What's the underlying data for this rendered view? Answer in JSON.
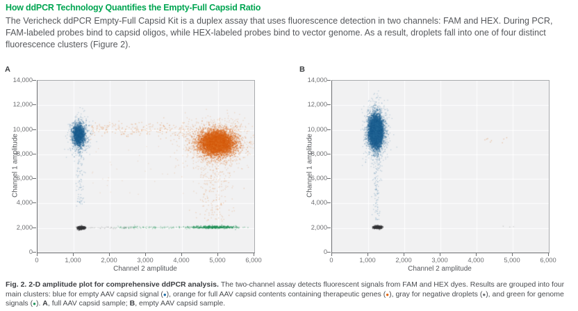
{
  "page": {
    "heading": "How ddPCR Technology Quantifies the Empty-Full Capsid Ratio",
    "body": "The Vericheck ddPCR Empty-Full Capsid Kit is a duplex assay that uses fluorescence detection in two channels: FAM and HEX. During PCR, FAM-labeled probes bind to capsid oligos, while HEX-labeled probes bind to vector genome. As a result, droplets fall into one of four distinct fluorescence clusters (Figure 2).",
    "accent_green": "#00a551"
  },
  "caption": {
    "segments": [
      {
        "text": "Fig. 2. 2-D amplitude plot for comprehensive ddPCR analysis. ",
        "bold": true
      },
      {
        "text": "The two-channel assay detects fluorescent signals from FAM and HEX dyes. Results are grouped into four main clusters: blue for empty AAV capsid signal ("
      },
      {
        "text": "●",
        "color": "#1b6aa5"
      },
      {
        "text": "), orange for full AAV capsid contents containing therapeutic genes ("
      },
      {
        "text": "●",
        "color": "#e2650f"
      },
      {
        "text": "), gray for negative droplets ("
      },
      {
        "text": "●",
        "color": "#6d6e71"
      },
      {
        "text": "), and green for genome signals ("
      },
      {
        "text": "●",
        "color": "#21945c"
      },
      {
        "text": "). "
      },
      {
        "text": "A",
        "bold": true
      },
      {
        "text": ", full AAV capsid sample; "
      },
      {
        "text": "B",
        "bold": true
      },
      {
        "text": ", empty AAV capsid sample."
      }
    ]
  },
  "chart_data": [
    {
      "type": "scatter",
      "panel_label": "A",
      "xlabel": "Channel 2 amplitude",
      "ylabel": "Channel 1 amplitude",
      "xlim": [
        0,
        6000
      ],
      "ylim": [
        0,
        14000
      ],
      "xticks": {
        "values": [
          0,
          1000,
          2000,
          3000,
          4000,
          5000,
          6000
        ],
        "labels": [
          "0",
          "1,000",
          "2,000",
          "3,000",
          "4,000",
          "5,000",
          "6,000"
        ]
      },
      "yticks": {
        "values": [
          0,
          2000,
          4000,
          6000,
          8000,
          10000,
          12000,
          14000
        ],
        "labels": [
          "0",
          "2,000",
          "4,000",
          "6,000",
          "8,000",
          "10,000",
          "12,000",
          "14,000"
        ]
      },
      "grid": true,
      "background": "#f1f1f2",
      "grid_color": "#ffffff",
      "clusters": [
        {
          "name": "empty-capsid-blue-core",
          "color": "#1a5c8e",
          "n": 1500,
          "alpha": 0.5,
          "size": 1.4,
          "x": {
            "d": "n",
            "m": 1130,
            "s": 85
          },
          "y": {
            "d": "n",
            "m": 9600,
            "s": 420
          }
        },
        {
          "name": "empty-capsid-blue-halo",
          "color": "#2f6f9e",
          "n": 450,
          "alpha": 0.3,
          "size": 1.2,
          "x": {
            "d": "n",
            "m": 1140,
            "s": 150
          },
          "y": {
            "d": "n",
            "m": 9600,
            "s": 800
          }
        },
        {
          "name": "empty-capsid-blue-tail",
          "color": "#2f6f9e",
          "n": 85,
          "alpha": 0.35,
          "size": 1.2,
          "x": {
            "d": "n",
            "m": 1170,
            "s": 55
          },
          "y": {
            "d": "u",
            "a": 3800,
            "b": 8600
          }
        },
        {
          "name": "full-capsid-orange-core",
          "color": "#d85c0e",
          "n": 5200,
          "alpha": 0.5,
          "size": 1.4,
          "x": {
            "d": "n",
            "m": 4950,
            "s": 230
          },
          "y": {
            "d": "n",
            "m": 8950,
            "s": 470
          }
        },
        {
          "name": "full-capsid-orange-halo",
          "color": "#e07a2e",
          "n": 1700,
          "alpha": 0.3,
          "size": 1.2,
          "x": {
            "d": "n",
            "m": 4950,
            "s": 420
          },
          "y": {
            "d": "n",
            "m": 8950,
            "s": 900
          }
        },
        {
          "name": "orange-horizontal-trail",
          "color": "#e07a2e",
          "n": 240,
          "alpha": 0.4,
          "size": 1.2,
          "x": {
            "d": "u",
            "a": 1450,
            "b": 4600
          },
          "y": {
            "d": "n",
            "m": 10050,
            "s": 320
          }
        },
        {
          "name": "orange-vertical-tail",
          "color": "#e07a2e",
          "n": 200,
          "alpha": 0.35,
          "size": 1.2,
          "x": {
            "d": "n",
            "m": 4900,
            "s": 250
          },
          "y": {
            "d": "u",
            "a": 2600,
            "b": 7600
          }
        },
        {
          "name": "orange-strays",
          "color": "#e08a4a",
          "n": 60,
          "alpha": 0.25,
          "size": 1.2,
          "x": {
            "d": "u",
            "a": 1500,
            "b": 5800
          },
          "y": {
            "d": "u",
            "a": 4500,
            "b": 8800
          }
        },
        {
          "name": "negative-gray",
          "color": "#343538",
          "n": 380,
          "alpha": 0.7,
          "size": 1.5,
          "x": {
            "d": "n",
            "m": 1195,
            "s": 50
          },
          "y": {
            "d": "n",
            "m": 2050,
            "s": 55
          }
        },
        {
          "name": "genome-green-dense",
          "color": "#1e8f55",
          "n": 430,
          "alpha": 0.55,
          "size": 1.3,
          "x": {
            "d": "n",
            "m": 4900,
            "s": 330
          },
          "y": {
            "d": "n",
            "m": 2100,
            "s": 55
          }
        },
        {
          "name": "genome-green-sparse",
          "color": "#2f9b63",
          "n": 150,
          "alpha": 0.4,
          "size": 1.2,
          "x": {
            "d": "u",
            "a": 2100,
            "b": 4400
          },
          "y": {
            "d": "n",
            "m": 2080,
            "s": 50
          }
        },
        {
          "name": "band-gray-sparse",
          "color": "#8d8f92",
          "n": 45,
          "alpha": 0.4,
          "size": 1.2,
          "x": {
            "d": "u",
            "a": 1350,
            "b": 2700
          },
          "y": {
            "d": "n",
            "m": 2050,
            "s": 45
          }
        }
      ]
    },
    {
      "type": "scatter",
      "panel_label": "B",
      "xlabel": "Channel 2 amplitude",
      "ylabel": "Channel 1 amplitude",
      "xlim": [
        0,
        6000
      ],
      "ylim": [
        0,
        14000
      ],
      "xticks": {
        "values": [
          0,
          1000,
          2000,
          3000,
          4000,
          5000,
          6000
        ],
        "labels": [
          "0",
          "1,000",
          "2,000",
          "3,000",
          "4,000",
          "5,000",
          "6,000"
        ]
      },
      "yticks": {
        "values": [
          0,
          2000,
          4000,
          6000,
          8000,
          10000,
          12000,
          14000
        ],
        "labels": [
          "0",
          "2,000",
          "4,000",
          "6,000",
          "8,000",
          "10,000",
          "12,000",
          "14,000"
        ]
      },
      "grid": true,
      "background": "#f1f1f2",
      "grid_color": "#ffffff",
      "clusters": [
        {
          "name": "empty-capsid-blue-core",
          "color": "#1a5c8e",
          "n": 5200,
          "alpha": 0.5,
          "size": 1.4,
          "x": {
            "d": "n",
            "m": 1200,
            "s": 90
          },
          "y": {
            "d": "n",
            "m": 9900,
            "s": 600
          }
        },
        {
          "name": "empty-capsid-blue-halo",
          "color": "#2f6f9e",
          "n": 1400,
          "alpha": 0.3,
          "size": 1.2,
          "x": {
            "d": "n",
            "m": 1200,
            "s": 145
          },
          "y": {
            "d": "n",
            "m": 9900,
            "s": 1050
          }
        },
        {
          "name": "empty-capsid-blue-tail",
          "color": "#2f6f9e",
          "n": 110,
          "alpha": 0.35,
          "size": 1.2,
          "x": {
            "d": "n",
            "m": 1230,
            "s": 55
          },
          "y": {
            "d": "u",
            "a": 2700,
            "b": 8300
          }
        },
        {
          "name": "negative-gray",
          "color": "#343538",
          "n": 320,
          "alpha": 0.7,
          "size": 1.5,
          "x": {
            "d": "n",
            "m": 1250,
            "s": 60
          },
          "y": {
            "d": "n",
            "m": 2100,
            "s": 55
          }
        },
        {
          "name": "orange-strays",
          "color": "#e08a4a",
          "n": 8,
          "alpha": 0.5,
          "size": 1.3,
          "x": {
            "d": "u",
            "a": 4200,
            "b": 5100
          },
          "y": {
            "d": "u",
            "a": 8900,
            "b": 9500
          }
        },
        {
          "name": "gray-strays",
          "color": "#9a9b9e",
          "n": 3,
          "alpha": 0.5,
          "size": 1.3,
          "x": {
            "d": "u",
            "a": 4700,
            "b": 5100
          },
          "y": {
            "d": "u",
            "a": 2000,
            "b": 2250
          }
        }
      ]
    }
  ]
}
